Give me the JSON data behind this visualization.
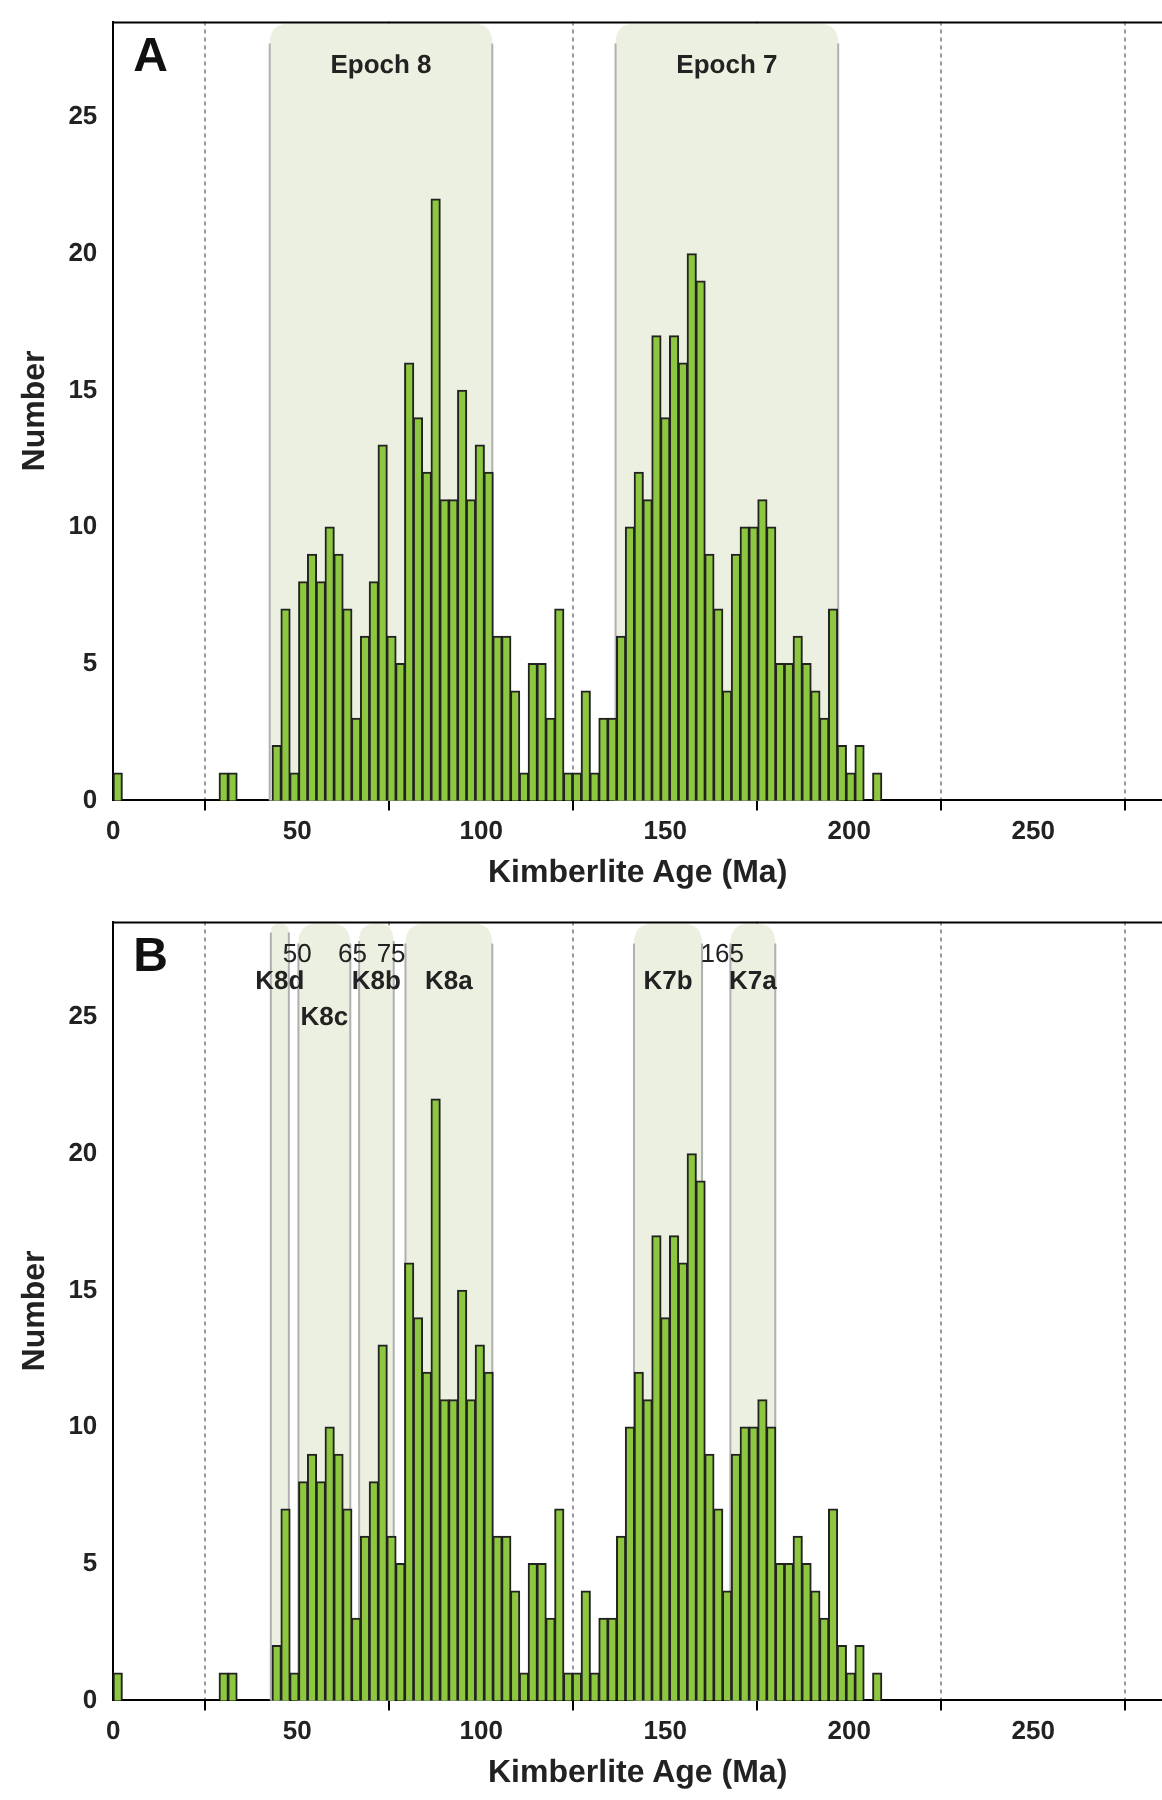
{
  "chart_data": [
    {
      "type": "histogram",
      "title": "A",
      "xlabel": "Kimberlite Age (Ma)",
      "ylabel": "Number",
      "color": "#8dc63f",
      "bins": [
        0,
        2.4,
        4.8,
        7.2,
        9.6,
        12,
        14.4,
        16.8,
        19.2,
        21.6,
        24,
        26.4,
        28.8,
        31.2,
        33.6,
        36,
        38.4,
        40.8,
        43.2,
        45.6,
        48,
        50.4,
        52.8,
        55.2,
        57.6,
        60,
        62.4,
        64.8,
        67.2,
        69.6,
        72,
        74.4,
        76.8,
        79.2,
        81.6,
        84,
        86.4,
        88.8,
        91.2,
        93.6,
        96,
        98.4,
        100.8,
        103.2,
        105.6,
        108,
        110.4,
        112.8,
        115.2,
        117.6,
        120,
        122.4,
        124.8,
        127.2,
        129.6,
        132,
        134.4,
        136.8,
        139.2,
        141.6,
        144,
        146.4,
        148.8,
        151.2,
        153.6,
        156,
        158.4,
        160.8,
        163.2,
        165.6,
        168,
        170.4,
        172.8,
        175.2,
        177.6,
        180,
        182.4,
        184.8,
        187.2,
        189.6,
        192,
        194.4,
        196.8,
        199.2,
        201.6,
        204,
        206.4,
        208.8
      ],
      "values": [
        1,
        0,
        0,
        0,
        0,
        0,
        0,
        0,
        0,
        0,
        0,
        0,
        1,
        1,
        0,
        0,
        0,
        0,
        2,
        7,
        1,
        8,
        9,
        8,
        10,
        9,
        7,
        3,
        6,
        8,
        13,
        6,
        5,
        16,
        14,
        12,
        22,
        11,
        11,
        15,
        11,
        13,
        12,
        6,
        6,
        4,
        1,
        5,
        5,
        3,
        7,
        1,
        1,
        4,
        1,
        3,
        3,
        6,
        10,
        12,
        11,
        17,
        14,
        17,
        16,
        20,
        19,
        9,
        7,
        4,
        9,
        10,
        10,
        11,
        10,
        5,
        5,
        6,
        5,
        4,
        3,
        7,
        2,
        1,
        2,
        0,
        1
      ],
      "xlim": [
        0,
        285
      ],
      "xticks": [
        0,
        50,
        100,
        150,
        200,
        250
      ],
      "ylim": [
        0,
        28.5
      ],
      "yticks": [
        0,
        5,
        10,
        15,
        20,
        25
      ],
      "grid": "x",
      "legend": false,
      "bands": [
        {
          "axis": "x",
          "from": 42.5,
          "to": 103,
          "label": "Epoch 8",
          "color": "#ebf0e0"
        },
        {
          "axis": "x",
          "from": 136.5,
          "to": 197,
          "label": "Epoch 7",
          "color": "#ebf0e0"
        }
      ]
    },
    {
      "type": "histogram",
      "title": "B",
      "xlabel": "Kimberlite Age (Ma)",
      "ylabel": "Number",
      "color": "#8dc63f",
      "bins": [
        0,
        2.4,
        4.8,
        7.2,
        9.6,
        12,
        14.4,
        16.8,
        19.2,
        21.6,
        24,
        26.4,
        28.8,
        31.2,
        33.6,
        36,
        38.4,
        40.8,
        43.2,
        45.6,
        48,
        50.4,
        52.8,
        55.2,
        57.6,
        60,
        62.4,
        64.8,
        67.2,
        69.6,
        72,
        74.4,
        76.8,
        79.2,
        81.6,
        84,
        86.4,
        88.8,
        91.2,
        93.6,
        96,
        98.4,
        100.8,
        103.2,
        105.6,
        108,
        110.4,
        112.8,
        115.2,
        117.6,
        120,
        122.4,
        124.8,
        127.2,
        129.6,
        132,
        134.4,
        136.8,
        139.2,
        141.6,
        144,
        146.4,
        148.8,
        151.2,
        153.6,
        156,
        158.4,
        160.8,
        163.2,
        165.6,
        168,
        170.4,
        172.8,
        175.2,
        177.6,
        180,
        182.4,
        184.8,
        187.2,
        189.6,
        192,
        194.4,
        196.8,
        199.2,
        201.6,
        204,
        206.4,
        208.8
      ],
      "values": [
        1,
        0,
        0,
        0,
        0,
        0,
        0,
        0,
        0,
        0,
        0,
        0,
        1,
        1,
        0,
        0,
        0,
        0,
        2,
        7,
        1,
        8,
        9,
        8,
        10,
        9,
        7,
        3,
        6,
        8,
        13,
        6,
        5,
        16,
        14,
        12,
        22,
        11,
        11,
        15,
        11,
        13,
        12,
        6,
        6,
        4,
        1,
        5,
        5,
        3,
        7,
        1,
        1,
        4,
        1,
        3,
        3,
        6,
        10,
        12,
        11,
        17,
        14,
        17,
        16,
        20,
        19,
        9,
        7,
        4,
        9,
        10,
        10,
        11,
        10,
        5,
        5,
        6,
        5,
        4,
        3,
        7,
        2,
        1,
        2,
        0,
        1
      ],
      "xlim": [
        0,
        285
      ],
      "xticks": [
        0,
        50,
        100,
        150,
        200,
        250
      ],
      "ylim": [
        0,
        28.5
      ],
      "yticks": [
        0,
        5,
        10,
        15,
        20,
        25
      ],
      "grid": "x",
      "legend": false,
      "bands": [
        {
          "axis": "x",
          "from": 42.8,
          "to": 47.7,
          "label": "K8d",
          "color": "#ebf0e0"
        },
        {
          "axis": "x",
          "from": 50.3,
          "to": 64.4,
          "label": "K8c",
          "color": "#ebf0e0"
        },
        {
          "axis": "x",
          "from": 66.8,
          "to": 76.2,
          "label": "K8b",
          "color": "#ebf0e0"
        },
        {
          "axis": "x",
          "from": 79.4,
          "to": 103,
          "label": "K8a",
          "color": "#ebf0e0"
        },
        {
          "axis": "x",
          "from": 141.5,
          "to": 160,
          "label": "K7b",
          "color": "#ebf0e0"
        },
        {
          "axis": "x",
          "from": 167.7,
          "to": 179.9,
          "label": "K7a",
          "color": "#ebf0e0"
        }
      ],
      "annotations": [
        {
          "text": "50",
          "x": 50,
          "y": 27.3
        },
        {
          "text": "65",
          "x": 65,
          "y": 27.3
        },
        {
          "text": "75",
          "x": 75.5,
          "y": 27.3
        },
        {
          "text": "165",
          "x": 165.5,
          "y": 27.3
        }
      ]
    }
  ]
}
